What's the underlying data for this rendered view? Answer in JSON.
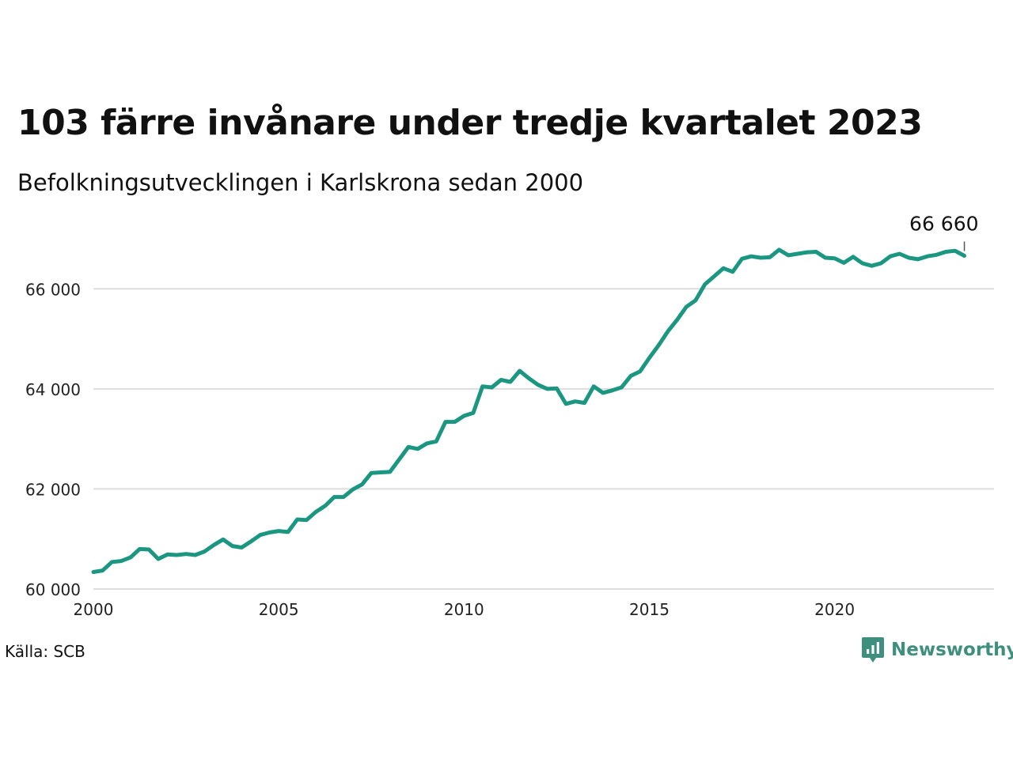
{
  "title": "103 färre invånare under tredje kvartalet 2023",
  "subtitle": "Befolkningsutvecklingen i Karlskrona sedan 2000",
  "source": "Källa: SCB",
  "brand": "Newsworthy",
  "colors": {
    "line": "#1a9681",
    "grid": "#dddddd",
    "brand": "#3f8f7f"
  },
  "chart_data": {
    "type": "line",
    "title": "103 färre invånare under tredje kvartalet 2023",
    "subtitle": "Befolkningsutvecklingen i Karlskrona sedan 2000",
    "xlabel": "",
    "ylabel": "",
    "xlim": [
      2000,
      2024.3
    ],
    "ylim": [
      60000,
      67000
    ],
    "x_ticks": [
      2000,
      2005,
      2010,
      2015,
      2020
    ],
    "x_tick_labels": [
      "2000",
      "2005",
      "2010",
      "2015",
      "2020"
    ],
    "y_ticks": [
      60000,
      62000,
      64000,
      66000
    ],
    "y_tick_labels": [
      "60 000",
      "62 000",
      "64 000",
      "66 000"
    ],
    "grid": true,
    "annotation": {
      "label": "66 660",
      "year": 2023.5,
      "value": 66660
    },
    "series": [
      {
        "x": [
          2000.0,
          2000.25,
          2000.5,
          2000.75,
          2001.0,
          2001.25,
          2001.5,
          2001.75,
          2002.0,
          2002.25,
          2002.5,
          2002.75,
          2003.0,
          2003.25,
          2003.5,
          2003.75,
          2004.0,
          2004.25,
          2004.5,
          2004.75,
          2005.0,
          2005.25,
          2005.5,
          2005.75,
          2006.0,
          2006.25,
          2006.5,
          2006.75,
          2007.0,
          2007.25,
          2007.5,
          2007.75,
          2008.0,
          2008.25,
          2008.5,
          2008.75,
          2009.0,
          2009.25,
          2009.5,
          2009.75,
          2010.0,
          2010.25,
          2010.5,
          2010.75,
          2011.0,
          2011.25,
          2011.5,
          2011.75,
          2012.0,
          2012.25,
          2012.5,
          2012.75,
          2013.0,
          2013.25,
          2013.5,
          2013.75,
          2014.0,
          2014.25,
          2014.5,
          2014.75,
          2015.0,
          2015.25,
          2015.5,
          2015.75,
          2016.0,
          2016.25,
          2016.5,
          2016.75,
          2017.0,
          2017.25,
          2017.5,
          2017.75,
          2018.0,
          2018.25,
          2018.5,
          2018.75,
          2019.0,
          2019.25,
          2019.5,
          2019.75,
          2020.0,
          2020.25,
          2020.5,
          2020.75,
          2021.0,
          2021.25,
          2021.5,
          2021.75,
          2022.0,
          2022.25,
          2022.5,
          2022.75,
          2023.0,
          2023.25,
          2023.5
        ],
        "values": [
          60340,
          60370,
          60540,
          60560,
          60630,
          60800,
          60790,
          60600,
          60690,
          60680,
          60700,
          60680,
          60750,
          60880,
          60990,
          60860,
          60830,
          60950,
          61080,
          61130,
          61160,
          61140,
          61390,
          61380,
          61540,
          61660,
          61840,
          61840,
          61990,
          62090,
          62320,
          62330,
          62340,
          62590,
          62840,
          62800,
          62910,
          62950,
          63340,
          63340,
          63460,
          63520,
          64050,
          64030,
          64180,
          64140,
          64360,
          64210,
          64080,
          64000,
          64010,
          63700,
          63750,
          63720,
          64050,
          63920,
          63970,
          64030,
          64260,
          64350,
          64620,
          64870,
          65150,
          65380,
          65640,
          65770,
          66090,
          66250,
          66410,
          66340,
          66600,
          66650,
          66620,
          66630,
          66780,
          66670,
          66700,
          66730,
          66740,
          66620,
          66610,
          66520,
          66640,
          66510,
          66460,
          66510,
          66650,
          66700,
          66620,
          66590,
          66650,
          66680,
          66740,
          66760,
          66660
        ]
      }
    ]
  }
}
